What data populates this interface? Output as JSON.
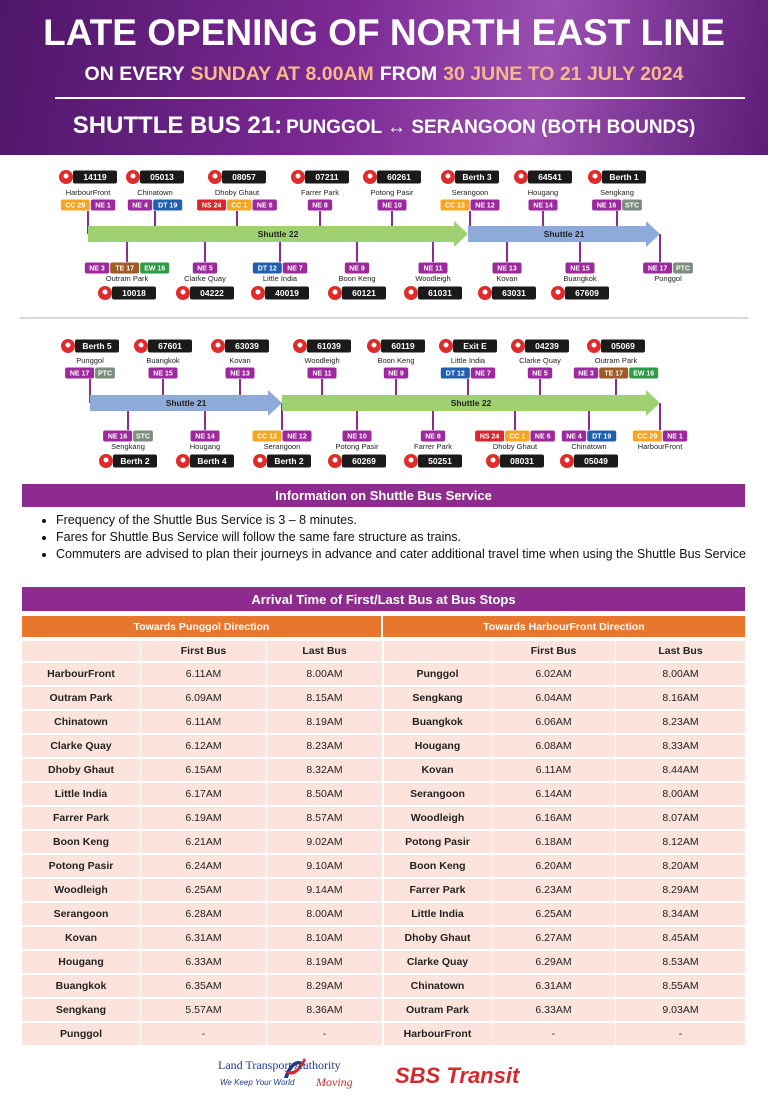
{
  "header": {
    "title": "LATE OPENING OF NORTH EAST LINE",
    "subtitle": [
      "ON EVERY",
      "SUNDAY AT 8.00AM",
      "FROM",
      "30 JUNE TO 21 JULY 2024"
    ],
    "shuttle_label": "SHUTTLE BUS 21:",
    "shuttle_route": "PUNGGOL ↔ SERANGOON (BOTH BOUNDS)"
  },
  "diagrams": [
    {
      "segments": [
        {
          "label": "Shuttle 22",
          "color": "#9fd071"
        },
        {
          "label": "Shuttle 21",
          "color": "#8eaadb"
        }
      ],
      "top": [
        {
          "code": "14119",
          "name": "HarbourFront",
          "lines": [
            {
              "label": "CC 29",
              "color": "#f5a623"
            },
            {
              "label": "NE 1",
              "color": "#9c2a9c"
            }
          ]
        },
        {
          "code": "05013",
          "name": "Chinatown",
          "lines": [
            {
              "label": "NE 4",
              "color": "#9c2a9c"
            },
            {
              "label": "DT 19",
              "color": "#1f5fb0"
            }
          ]
        },
        {
          "code": "08057",
          "name": "Dhoby Ghaut",
          "lines": [
            {
              "label": "NS 24",
              "color": "#d7282f"
            },
            {
              "label": "CC 1",
              "color": "#f5a623"
            },
            {
              "label": "NE 6",
              "color": "#9c2a9c"
            }
          ]
        },
        {
          "code": "07211",
          "name": "Farrer Park",
          "lines": [
            {
              "label": "NE 8",
              "color": "#9c2a9c"
            }
          ]
        },
        {
          "code": "60261",
          "name": "Potong Pasir",
          "lines": [
            {
              "label": "NE 10",
              "color": "#9c2a9c"
            }
          ]
        },
        {
          "code": "Berth 3",
          "name": "Serangoon",
          "lines": [
            {
              "label": "CC 13",
              "color": "#f5a623"
            },
            {
              "label": "NE 12",
              "color": "#9c2a9c"
            }
          ]
        },
        {
          "code": "64541",
          "name": "Hougang",
          "lines": [
            {
              "label": "NE 14",
              "color": "#9c2a9c"
            }
          ]
        },
        {
          "code": "Berth 1",
          "name": "Sengkang",
          "lines": [
            {
              "label": "NE 16",
              "color": "#9c2a9c"
            },
            {
              "label": "STC",
              "color": "#7b8d7d"
            }
          ]
        }
      ],
      "bottom": [
        {
          "code": "10018",
          "name": "Outram Park",
          "lines": [
            {
              "label": "NE 3",
              "color": "#9c2a9c"
            },
            {
              "label": "TE 17",
              "color": "#9d5b25"
            },
            {
              "label": "EW 16",
              "color": "#2e9b47"
            }
          ]
        },
        {
          "code": "04222",
          "name": "Clarke Quay",
          "lines": [
            {
              "label": "NE 5",
              "color": "#9c2a9c"
            }
          ]
        },
        {
          "code": "40019",
          "name": "Little India",
          "lines": [
            {
              "label": "DT 12",
              "color": "#1f5fb0"
            },
            {
              "label": "NE 7",
              "color": "#9c2a9c"
            }
          ]
        },
        {
          "code": "60121",
          "name": "Boon Keng",
          "lines": [
            {
              "label": "NE 9",
              "color": "#9c2a9c"
            }
          ]
        },
        {
          "code": "61031",
          "name": "Woodleigh",
          "lines": [
            {
              "label": "NE 11",
              "color": "#9c2a9c"
            }
          ]
        },
        {
          "code": "63031",
          "name": "Kovan",
          "lines": [
            {
              "label": "NE 13",
              "color": "#9c2a9c"
            }
          ]
        },
        {
          "code": "67609",
          "name": "Buangkok",
          "lines": [
            {
              "label": "NE 15",
              "color": "#9c2a9c"
            }
          ]
        },
        {
          "name": "Punggol",
          "lines": [
            {
              "label": "NE 17",
              "color": "#9c2a9c"
            },
            {
              "label": "PTC",
              "color": "#7b8d7d"
            }
          ]
        }
      ]
    },
    {
      "segments": [
        {
          "label": "Shuttle 21",
          "color": "#8eaadb"
        },
        {
          "label": "Shuttle 22",
          "color": "#9fd071"
        }
      ],
      "top": [
        {
          "code": "Berth 5",
          "name": "Punggol",
          "lines": [
            {
              "label": "NE 17",
              "color": "#9c2a9c"
            },
            {
              "label": "PTC",
              "color": "#7b8d7d"
            }
          ]
        },
        {
          "code": "67601",
          "name": "Buangkok",
          "lines": [
            {
              "label": "NE 15",
              "color": "#9c2a9c"
            }
          ]
        },
        {
          "code": "63039",
          "name": "Kovan",
          "lines": [
            {
              "label": "NE 13",
              "color": "#9c2a9c"
            }
          ]
        },
        {
          "code": "61039",
          "name": "Woodleigh",
          "lines": [
            {
              "label": "NE 11",
              "color": "#9c2a9c"
            }
          ]
        },
        {
          "code": "60119",
          "name": "Boon Keng",
          "lines": [
            {
              "label": "NE 9",
              "color": "#9c2a9c"
            }
          ]
        },
        {
          "code": "Exit E",
          "name": "Little India",
          "lines": [
            {
              "label": "DT 12",
              "color": "#1f5fb0"
            },
            {
              "label": "NE 7",
              "color": "#9c2a9c"
            }
          ]
        },
        {
          "code": "04239",
          "name": "Clarke Quay",
          "lines": [
            {
              "label": "NE 5",
              "color": "#9c2a9c"
            }
          ]
        },
        {
          "code": "05069",
          "name": "Outram Park",
          "lines": [
            {
              "label": "NE 3",
              "color": "#9c2a9c"
            },
            {
              "label": "TE 17",
              "color": "#9d5b25"
            },
            {
              "label": "EW 16",
              "color": "#2e9b47"
            }
          ]
        }
      ],
      "bottom": [
        {
          "code": "Berth 2",
          "name": "Sengkang",
          "lines": [
            {
              "label": "NE 16",
              "color": "#9c2a9c"
            },
            {
              "label": "STC",
              "color": "#7b8d7d"
            }
          ]
        },
        {
          "code": "Berth 4",
          "name": "Hougang",
          "lines": [
            {
              "label": "NE 14",
              "color": "#9c2a9c"
            }
          ]
        },
        {
          "code": "Berth 2",
          "name": "Serangoon",
          "lines": [
            {
              "label": "CC 13",
              "color": "#f5a623"
            },
            {
              "label": "NE 12",
              "color": "#9c2a9c"
            }
          ]
        },
        {
          "code": "60269",
          "name": "Potong Pasir",
          "lines": [
            {
              "label": "NE 10",
              "color": "#9c2a9c"
            }
          ]
        },
        {
          "code": "50251",
          "name": "Farrer Park",
          "lines": [
            {
              "label": "NE 8",
              "color": "#9c2a9c"
            }
          ]
        },
        {
          "code": "08031",
          "name": "Dhoby Ghaut",
          "lines": [
            {
              "label": "NS 24",
              "color": "#d7282f"
            },
            {
              "label": "CC 1",
              "color": "#f5a623"
            },
            {
              "label": "NE 6",
              "color": "#9c2a9c"
            }
          ]
        },
        {
          "code": "05049",
          "name": "Chinatown",
          "lines": [
            {
              "label": "NE 4",
              "color": "#9c2a9c"
            },
            {
              "label": "DT 19",
              "color": "#1f5fb0"
            }
          ]
        },
        {
          "name": "HarbourFront",
          "lines": [
            {
              "label": "CC 29",
              "color": "#f5a623"
            },
            {
              "label": "NE 1",
              "color": "#9c2a9c"
            }
          ]
        }
      ]
    }
  ],
  "info": {
    "title": "Information on Shuttle Bus Service",
    "bullets": [
      "Frequency of the Shuttle Bus Service is 3 – 8 minutes.",
      "Fares for Shuttle Bus Service will follow the same fare structure as trains.",
      "Commuters are advised to plan their journeys in advance and cater additional travel time when using the Shuttle Bus Service"
    ]
  },
  "table": {
    "title": "Arrival Time of First/Last Bus at Bus Stops",
    "directions": [
      "Towards Punggol Direction",
      "Towards HarbourFront Direction"
    ],
    "columns": [
      "First Bus",
      "Last Bus",
      "First Bus",
      "Last Bus"
    ],
    "rows": [
      [
        "HarbourFront",
        "6.11AM",
        "8.00AM",
        "Punggol",
        "6.02AM",
        "8.00AM"
      ],
      [
        "Outram Park",
        "6.09AM",
        "8.15AM",
        "Sengkang",
        "6.04AM",
        "8.16AM"
      ],
      [
        "Chinatown",
        "6.11AM",
        "8.19AM",
        "Buangkok",
        "6.06AM",
        "8.23AM"
      ],
      [
        "Clarke Quay",
        "6.12AM",
        "8.23AM",
        "Hougang",
        "6.08AM",
        "8.33AM"
      ],
      [
        "Dhoby Ghaut",
        "6.15AM",
        "8.32AM",
        "Kovan",
        "6.11AM",
        "8.44AM"
      ],
      [
        "Little India",
        "6.17AM",
        "8.50AM",
        "Serangoon",
        "6.14AM",
        "8.00AM"
      ],
      [
        "Farrer Park",
        "6.19AM",
        "8.57AM",
        "Woodleigh",
        "6.16AM",
        "8.07AM"
      ],
      [
        "Boon Keng",
        "6.21AM",
        "9.02AM",
        "Potong Pasir",
        "6.18AM",
        "8.12AM"
      ],
      [
        "Potong Pasir",
        "6.24AM",
        "9.10AM",
        "Boon Keng",
        "6.20AM",
        "8.20AM"
      ],
      [
        "Woodleigh",
        "6.25AM",
        "9.14AM",
        "Farrer Park",
        "6.23AM",
        "8.29AM"
      ],
      [
        "Serangoon",
        "6.28AM",
        "8.00AM",
        "Little India",
        "6.25AM",
        "8.34AM"
      ],
      [
        "Kovan",
        "6.31AM",
        "8.10AM",
        "Dhoby Ghaut",
        "6.27AM",
        "8.45AM"
      ],
      [
        "Hougang",
        "6.33AM",
        "8.19AM",
        "Clarke Quay",
        "6.29AM",
        "8.53AM"
      ],
      [
        "Buangkok",
        "6.35AM",
        "8.29AM",
        "Chinatown",
        "6.31AM",
        "8.55AM"
      ],
      [
        "Sengkang",
        "5.57AM",
        "8.36AM",
        "Outram Park",
        "6.33AM",
        "9.03AM"
      ],
      [
        "Punggol",
        "-",
        "-",
        "HarbourFront",
        "-",
        "-"
      ]
    ]
  },
  "footer": {
    "lta_name": "Land Transport Authority",
    "lta_tagline": "We Keep Your World",
    "lta_moving": "Moving",
    "operator": "SBS Transit"
  }
}
